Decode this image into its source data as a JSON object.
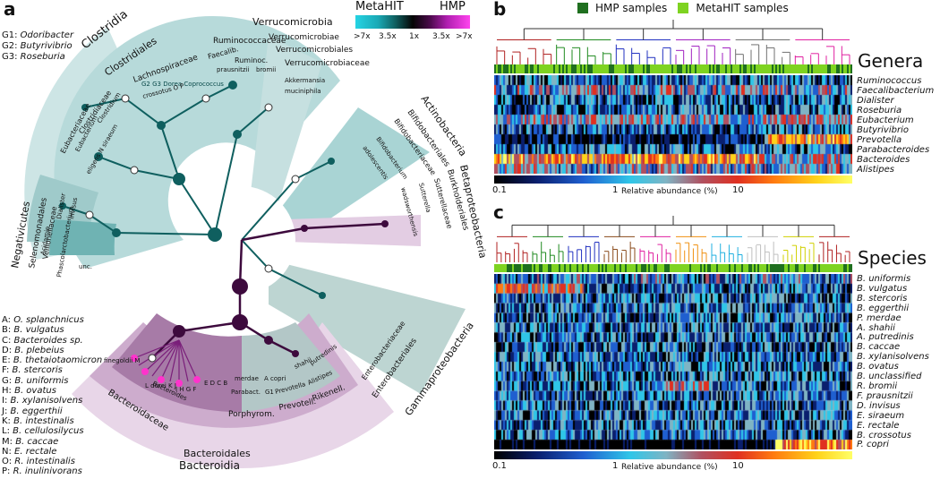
{
  "panel_labels": {
    "a": "a",
    "b": "b",
    "c": "c"
  },
  "legend": {
    "metahit": "MetaHIT",
    "hmp": "HMP",
    "ticks": [
      ">7x",
      "3.5x",
      "1x",
      "3.5x",
      ">7x"
    ],
    "hmp_samples": "HMP samples",
    "metahit_samples": "MetaHIT samples"
  },
  "genus_key": [
    {
      "code": "G1:",
      "name": "Odoribacter"
    },
    {
      "code": "G2:",
      "name": "Butyrivibrio"
    },
    {
      "code": "G3:",
      "name": "Roseburia"
    }
  ],
  "species_key": [
    {
      "code": "A:",
      "name": "O. splanchnicus"
    },
    {
      "code": "B:",
      "name": "B. vulgatus"
    },
    {
      "code": "C:",
      "name": "Bacteroides sp."
    },
    {
      "code": "D:",
      "name": "B. plebeius"
    },
    {
      "code": "E:",
      "name": "B. thetaiotaomicron"
    },
    {
      "code": "F:",
      "name": "B. stercoris"
    },
    {
      "code": "G:",
      "name": "B. uniformis"
    },
    {
      "code": "H:",
      "name": "B. ovatus"
    },
    {
      "code": "I:",
      "name": "B. xylanisolvens"
    },
    {
      "code": "J:",
      "name": "B. eggerthii"
    },
    {
      "code": "K:",
      "name": "B. intestinalis"
    },
    {
      "code": "L:",
      "name": "B. cellulosilycus"
    },
    {
      "code": "M:",
      "name": "B. caccae"
    },
    {
      "code": "N:",
      "name": "E. rectale"
    },
    {
      "code": "O:",
      "name": "R. intestinalis"
    },
    {
      "code": "P:",
      "name": "R. inulinivorans"
    }
  ],
  "tree_labels": {
    "clostridia": "Clostridia",
    "clostridiales": "Clostridiales",
    "lachnospiraceae": "Lachnospiraceae",
    "ruminococcaceae": "Ruminococcaceae",
    "ruminoc": "Ruminoc.",
    "faecalib": "Faecalib.",
    "prausnitzii": "prausnitzii",
    "bromii": "bromii",
    "dorea": "G2 G3 Dorea Coprococcus",
    "crossotus": "crossotus O P",
    "eubacteriaceae": "Eubacteriaceae",
    "clostridiaceae": "Clostridiaceae",
    "eubacterium": "Eubacterium",
    "clostridium": "Clostridium",
    "eligens": "eligens N siraeum",
    "verrucomicrobia": "Verrucomicrobia",
    "verrucomicrobiae": "Verrucomicrobiae",
    "verrucomicrobiales": "Verrucomicrobiales",
    "verrucomicrobiaceae": "Verrucomicrobiaceae",
    "akkermansia": "Akkermansia",
    "muciniphila": "muciniphila",
    "actinobacteria": "Actinobacteria",
    "bifidobacteriales": "Bifidobacteriales",
    "bifidobacteriaceae": "Bifidobacteriaceae",
    "bifidobacterium": "Bifidobacterium",
    "adolescentis": "adolescentis",
    "betaproteobacteria": "Betaproteobacteria",
    "burkholderiales": "Burkholderiales",
    "sutterellaceae": "Sutterellaceae",
    "sutterella": "Sutterella",
    "wadsworthensis": "wadsworthensis",
    "negativicutes": "Negativicutes",
    "selenomonadales": "Selenomonadales",
    "veillonellaceae": "Veillonellaceae",
    "dialister": "Dialister",
    "invisus": "invisus",
    "phascolarctobacterium": "Phascolarctobacterium",
    "acidamin": "Acidamin.",
    "unc": "unc.",
    "gammaproteobacteria": "Gammaproteobacteria",
    "enterobacteriales": "Enterobacteriales",
    "enterobacteriaceae": "Enterobacteriaceae",
    "bacteroidia": "Bacteroidia",
    "bacteroidales": "Bacteroidales",
    "bacteroidaceae": "Bacteroidaceae",
    "bacteroides": "Bacteroides",
    "porphyrom": "Porphyrom.",
    "prevotell": "Prevotell.",
    "rikenell": "Rikenell.",
    "parabact": "Parabact.",
    "prevotella": "Prevotella",
    "alistipes": "Alistipes",
    "merdae": "merdae",
    "a_copri": "A copri",
    "g1": "G1",
    "shahii": "shahii",
    "putredinis": "putredinis",
    "finegoldii": "finegoldii M",
    "dorei": "L dorei K J",
    "ihgf": "I H G F",
    "edcb": "E D C B"
  },
  "genera": {
    "title": "Genera",
    "rows": [
      "Ruminococcus",
      "Faecalibacterium",
      "Dialister",
      "Roseburia",
      "Eubacterium",
      "Butyrivibrio",
      "Prevotella",
      "Parabacteroides",
      "Bacteroides",
      "Alistipes"
    ],
    "scale_label": "Relative abundance (%)",
    "scale_ticks": [
      "0.1",
      "1",
      "10"
    ]
  },
  "species": {
    "title": "Species",
    "rows": [
      "B. uniformis",
      "B. vulgatus",
      "B. stercoris",
      "B. eggerthii",
      "P. merdae",
      "A. shahii",
      "A. putredinis",
      "B. caccae",
      "B. xylanisolvens",
      "B. ovatus",
      "B. unclassified",
      "R. bromii",
      "F. prausnitzii",
      "D. invisus",
      "E. siraeum",
      "E. rectale",
      "B. crossotus",
      "P. copri"
    ],
    "scale_label": "Relative abundance (%)",
    "scale_ticks": [
      "0.1",
      "1",
      "10"
    ]
  },
  "colors": {
    "hmp": "#1f6f1f",
    "metahit": "#7ed321",
    "clostridia_band": "#cfe7e7",
    "teal_node": "#0f5f5f",
    "purple_node": "#3d0a3d"
  }
}
